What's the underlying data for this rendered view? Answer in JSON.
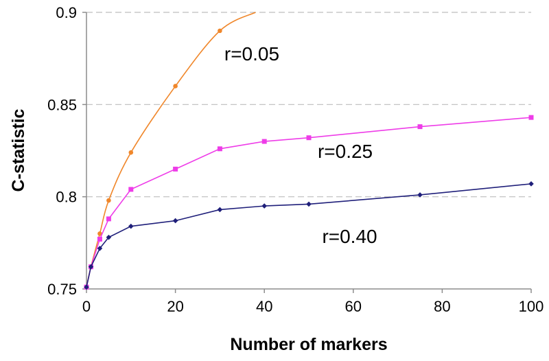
{
  "chart_data": {
    "type": "line",
    "xlabel": "Number of markers",
    "ylabel": "C-statistic",
    "xlim": [
      0,
      100
    ],
    "ylim": [
      0.75,
      0.9
    ],
    "x_ticks": [
      "0",
      "20",
      "40",
      "60",
      "80",
      "100"
    ],
    "y_ticks": [
      "0.75",
      "0.8",
      "0.85",
      "0.9"
    ],
    "grid": "horizontal dashed",
    "legend": "none",
    "series": [
      {
        "name": "r=0.05",
        "color": "#f0872b",
        "marker": "circle",
        "points": [
          [
            0,
            0.751
          ],
          [
            1,
            0.762
          ],
          [
            3,
            0.78
          ],
          [
            5,
            0.798
          ],
          [
            10,
            0.824
          ],
          [
            20,
            0.86
          ],
          [
            30,
            0.89
          ]
        ],
        "curve_end": [
          38,
          0.9
        ]
      },
      {
        "name": "r=0.25",
        "color": "#ee3ce8",
        "marker": "square",
        "points": [
          [
            0,
            0.751
          ],
          [
            1,
            0.762
          ],
          [
            3,
            0.777
          ],
          [
            5,
            0.788
          ],
          [
            10,
            0.804
          ],
          [
            20,
            0.815
          ],
          [
            30,
            0.826
          ],
          [
            40,
            0.83
          ],
          [
            50,
            0.832
          ],
          [
            75,
            0.838
          ],
          [
            100,
            0.843
          ]
        ]
      },
      {
        "name": "r=0.40",
        "color": "#1f1f7a",
        "marker": "diamond",
        "points": [
          [
            0,
            0.751
          ],
          [
            1,
            0.762
          ],
          [
            3,
            0.772
          ],
          [
            5,
            0.778
          ],
          [
            10,
            0.784
          ],
          [
            20,
            0.787
          ],
          [
            30,
            0.793
          ],
          [
            40,
            0.795
          ],
          [
            50,
            0.796
          ],
          [
            75,
            0.801
          ],
          [
            100,
            0.807
          ]
        ]
      }
    ],
    "annotations": [
      {
        "text": "r=0.05",
        "x": 31,
        "y": 0.874
      },
      {
        "text": "r=0.25",
        "x": 52,
        "y": 0.821
      },
      {
        "text": "r=0.40",
        "x": 53,
        "y": 0.775
      }
    ]
  }
}
